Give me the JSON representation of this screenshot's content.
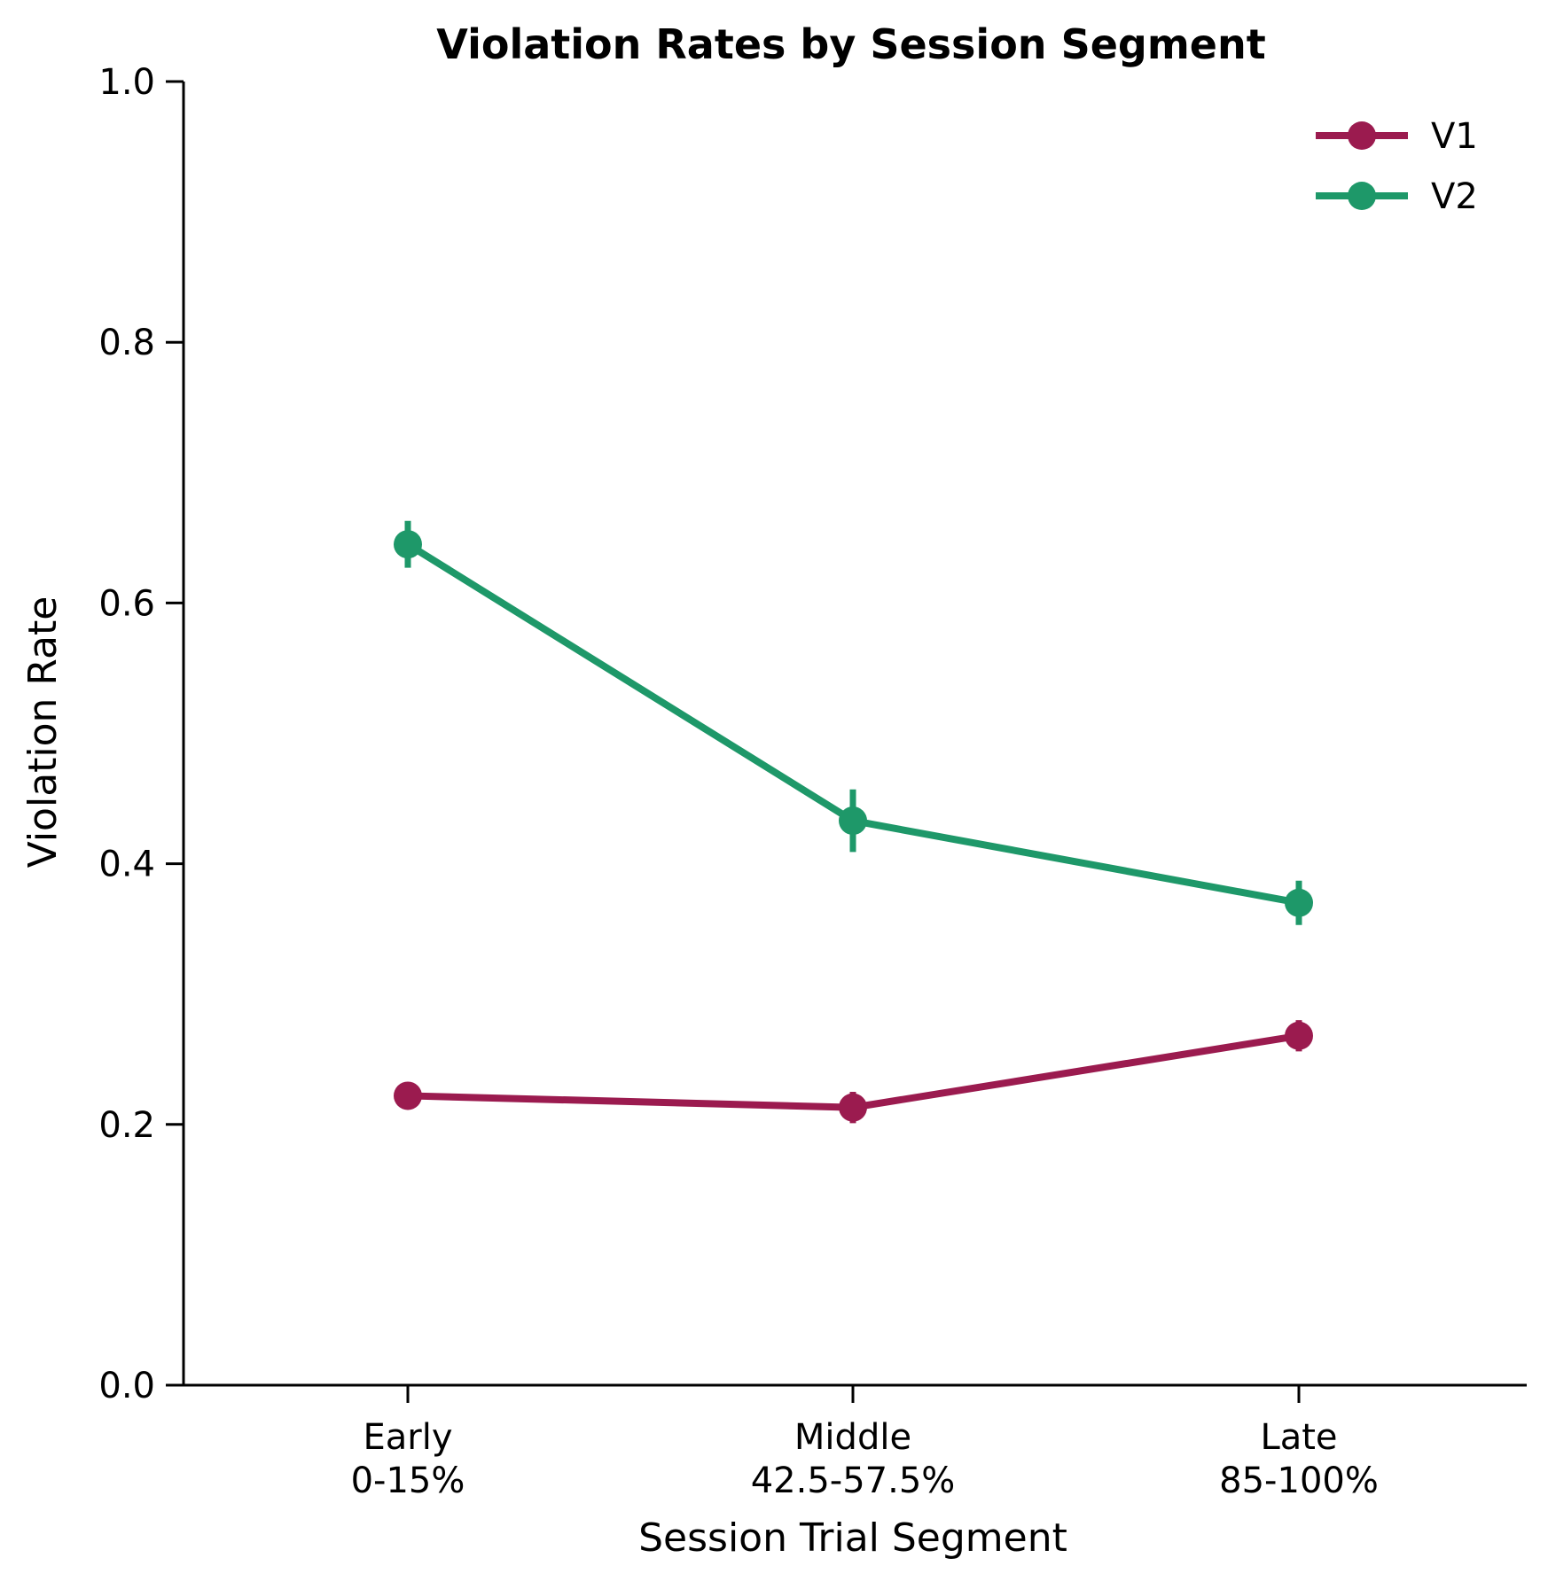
{
  "chart_data": {
    "type": "line",
    "title": "Violation Rates by Session Segment",
    "xlabel": "Session Trial Segment",
    "ylabel": "Violation Rate",
    "ylim": [
      0.0,
      1.0
    ],
    "yticks": [
      "0.0",
      "0.2",
      "0.4",
      "0.6",
      "0.8",
      "1.0"
    ],
    "categories": [
      {
        "line1": "Early",
        "line2": "0-15%"
      },
      {
        "line1": "Middle",
        "line2": "42.5-57.5%"
      },
      {
        "line1": "Late",
        "line2": "85-100%"
      }
    ],
    "grid": false,
    "legend_position": "top-right",
    "series": [
      {
        "name": "V1",
        "color": "#9B1B4F",
        "values": [
          0.222,
          0.213,
          0.268
        ],
        "errors": [
          0.01,
          0.012,
          0.012
        ]
      },
      {
        "name": "V2",
        "color": "#1E9869",
        "values": [
          0.645,
          0.433,
          0.37
        ],
        "errors": [
          0.018,
          0.024,
          0.017
        ]
      }
    ]
  }
}
